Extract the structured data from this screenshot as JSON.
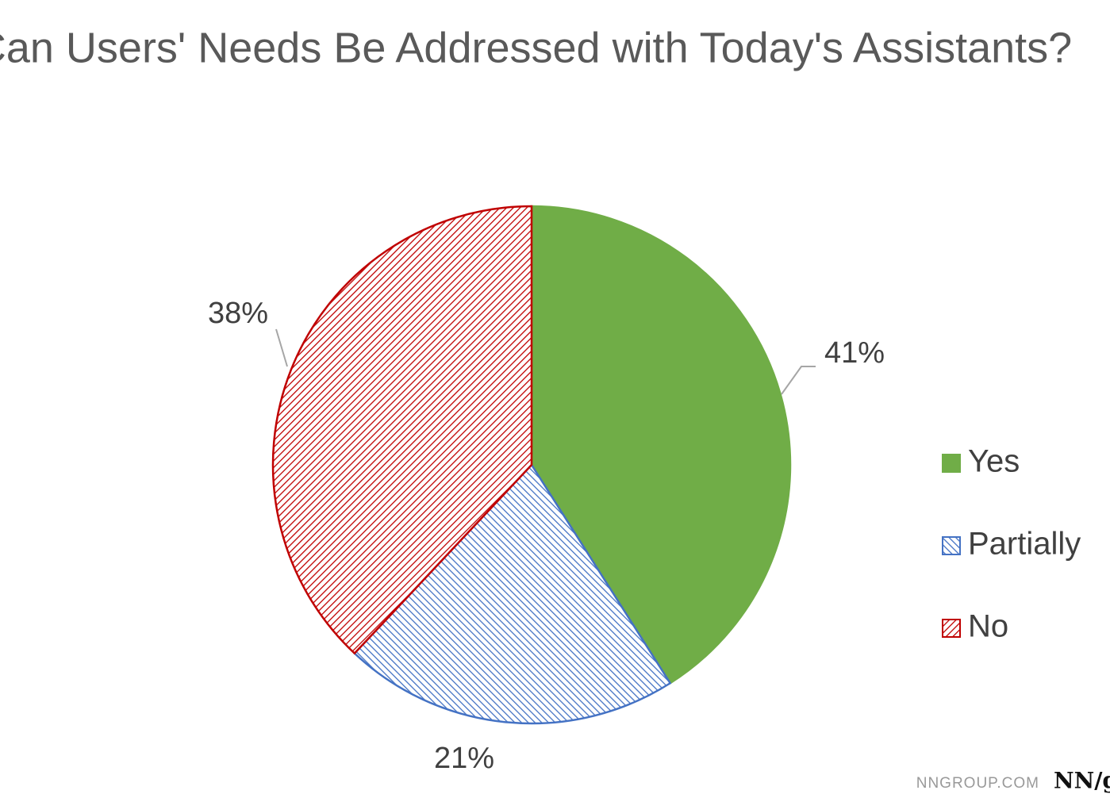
{
  "chart_data": {
    "type": "pie",
    "title": "Can Users' Needs Be Addressed with Today's Assistants?",
    "categories": [
      "Yes",
      "Partially",
      "No"
    ],
    "values": [
      41,
      21,
      38
    ],
    "value_labels": [
      "41%",
      "21%",
      "38%"
    ],
    "colors": [
      "#70ad47",
      "#4472c4",
      "#c00000"
    ],
    "fills": [
      "solid",
      "hatch-back",
      "hatch-forward"
    ],
    "legend": "right",
    "watermark": "NNGROUP.COM",
    "logo": "NN/g"
  }
}
